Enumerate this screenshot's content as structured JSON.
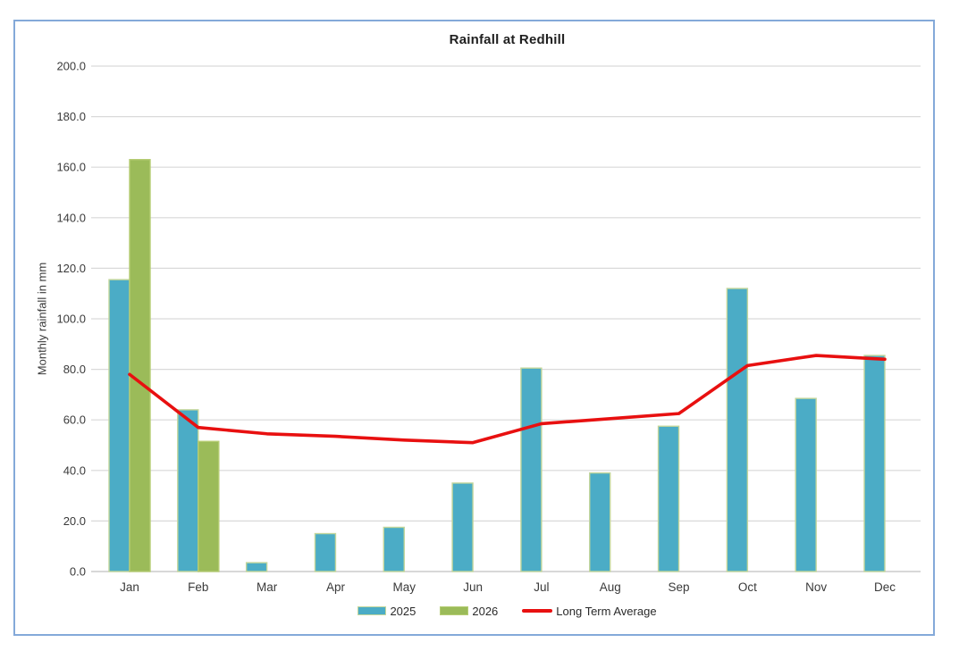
{
  "chart_data": {
    "type": "combo-bar-line",
    "title": "Rainfall at Redhill",
    "ylabel": "Monthly rainfall in mm",
    "xlabel": "",
    "categories": [
      "Jan",
      "Feb",
      "Mar",
      "Apr",
      "May",
      "Jun",
      "Jul",
      "Aug",
      "Sep",
      "Oct",
      "Nov",
      "Dec"
    ],
    "y_axis": {
      "min": 0,
      "max": 200,
      "step": 20
    },
    "y_tick_labels": [
      "0.0",
      "20.0",
      "40.0",
      "60.0",
      "80.0",
      "100.0",
      "120.0",
      "140.0",
      "160.0",
      "180.0",
      "200.0"
    ],
    "grid": true,
    "legend_position": "bottom",
    "series": [
      {
        "name": "2025",
        "type": "bar",
        "color": "#4bacc6",
        "border_color": "#c3d69b",
        "values": [
          115.5,
          64,
          3.5,
          15,
          17.5,
          35,
          80.5,
          39,
          57.5,
          112,
          68.5,
          85.5
        ]
      },
      {
        "name": "2026",
        "type": "bar",
        "color": "#9bbb59",
        "border_color": "#b5cc73",
        "values": [
          163,
          51.5,
          null,
          null,
          null,
          null,
          null,
          null,
          null,
          null,
          null,
          null
        ]
      },
      {
        "name": "Long Term Average",
        "type": "line",
        "color": "#e81010",
        "values": [
          78,
          57,
          54.5,
          53.5,
          52,
          51,
          58.5,
          60.5,
          62.5,
          81.5,
          85.5,
          84
        ]
      }
    ],
    "colors": {
      "frame_border": "#84a9d9",
      "gridline": "#d9d9d9",
      "baseline": "#c0c0c0",
      "text": "#3a3a3a"
    }
  }
}
